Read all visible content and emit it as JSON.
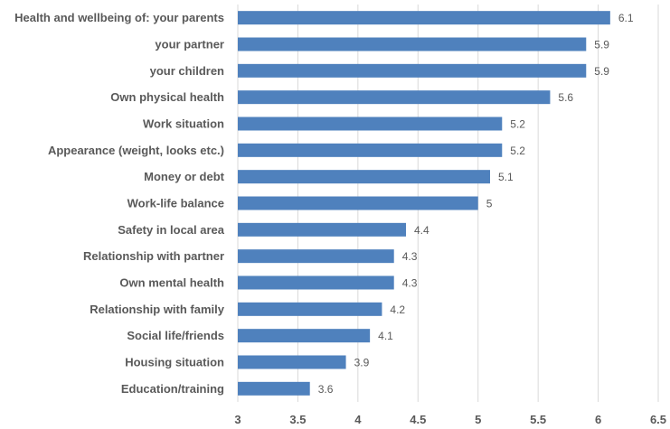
{
  "chart_data": {
    "type": "bar",
    "orientation": "horizontal",
    "title": "",
    "xlabel": "",
    "ylabel": "",
    "xlim": [
      3,
      6.5
    ],
    "xticks": [
      "3",
      "3.5",
      "4",
      "4.5",
      "5",
      "5.5",
      "6",
      "6.5"
    ],
    "grid": true,
    "legend": "none",
    "bar_color": "#4F81BD",
    "grid_color": "#D9D9D9",
    "text_color": "#595959",
    "categories": [
      "Health and wellbeing of: your parents",
      "your partner",
      "your children",
      "Own physical health",
      "Work situation",
      "Appearance (weight, looks etc.)",
      "Money or debt",
      "Work-life balance",
      "Safety in local area",
      "Relationship with partner",
      "Own mental health",
      "Relationship with family",
      "Social life/friends",
      "Housing situation",
      "Education/training"
    ],
    "values": [
      6.1,
      5.9,
      5.9,
      5.6,
      5.2,
      5.2,
      5.1,
      5,
      4.4,
      4.3,
      4.3,
      4.2,
      4.1,
      3.9,
      3.6
    ],
    "value_labels": [
      "6.1",
      "5.9",
      "5.9",
      "5.6",
      "5.2",
      "5.2",
      "5.1",
      "5",
      "4.4",
      "4.3",
      "4.3",
      "4.2",
      "4.1",
      "3.9",
      "3.6"
    ]
  }
}
